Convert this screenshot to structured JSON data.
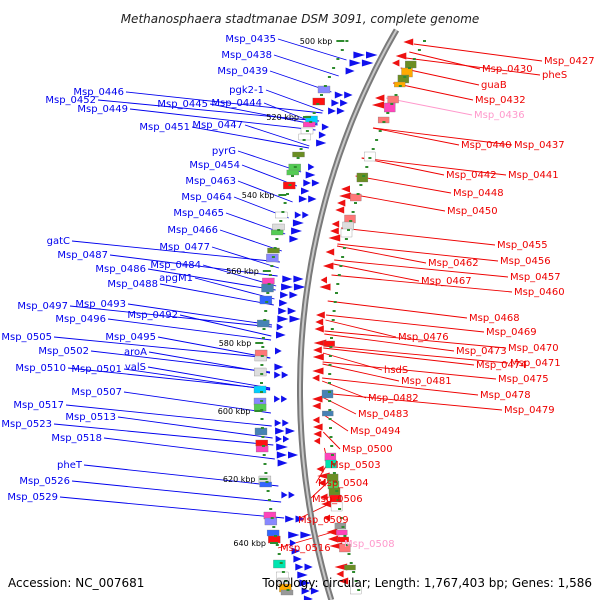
{
  "title": "Methanosphaera stadtmanae DSM 3091, complete genome",
  "footer": {
    "accession": "Accession: NC_007681",
    "summary": "Topology: circular; Length: 1,767,403 bp; Genes: 1,586"
  },
  "colors": {
    "left_labels": "#0000ee",
    "right_labels": "#ee0000",
    "pink_labels": "#ff99cc",
    "backbone": "#888888"
  },
  "ticks": [
    {
      "label": "500 kbp"
    },
    {
      "label": "520 kbp"
    },
    {
      "label": "540 kbp"
    },
    {
      "label": "560 kbp"
    },
    {
      "label": "580 kbp"
    },
    {
      "label": "600 kbp"
    },
    {
      "label": "620 kbp"
    },
    {
      "label": "640 kbp"
    }
  ],
  "left_labels": [
    "Msp_0435",
    "Msp_0438",
    "Msp_0439",
    "pgk2-1",
    "Msp_0446",
    "Msp_0452",
    "Msp_0445",
    "Msp_0449",
    "Msp_0444",
    "Msp_0451",
    "Msp_0447",
    "pyrG",
    "Msp_0454",
    "Msp_0463",
    "Msp_0464",
    "Msp_0465",
    "Msp_0466",
    "gatC",
    "Msp_0477",
    "Msp_0487",
    "Msp_0484",
    "Msp_0486",
    "apgM1",
    "Msp_0488",
    "Msp_0497",
    "Msp_0493",
    "Msp_0492",
    "Msp_0496",
    "Msp_0495",
    "Msp_0505",
    "Msp_0502",
    "aroA",
    "Msp_0510",
    "Msp_0501",
    "valS",
    "Msp_0507",
    "Msp_0517",
    "Msp_0513",
    "Msp_0523",
    "Msp_0518",
    "pheT",
    "Msp_0526",
    "Msp_0529"
  ],
  "right_labels": [
    "Msp_0427",
    "Msp_0430",
    "pheS",
    "guaB",
    "Msp_0432",
    "Msp_0436",
    "Msp_0440",
    "Msp_0437",
    "Msp_0442",
    "Msp_0441",
    "Msp_0448",
    "Msp_0450",
    "Msp_0455",
    "Msp_0456",
    "Msp_0462",
    "Msp_0457",
    "Msp_0467",
    "Msp_0460",
    "Msp_0468",
    "Msp_0469",
    "Msp_0476",
    "Msp_0470",
    "Msp_0473",
    "Msp_0471",
    "Msp_0474",
    "Msp_0475",
    "hsdS",
    "Msp_0481",
    "Msp_0478",
    "Msp_0482",
    "Msp_0479",
    "Msp_0483",
    "Msp_0494",
    "Msp_0500",
    "Msp_0503",
    "Msp_0504",
    "Msp_0506",
    "Msp_0509",
    "Msp_0508",
    "Msp_0516"
  ]
}
